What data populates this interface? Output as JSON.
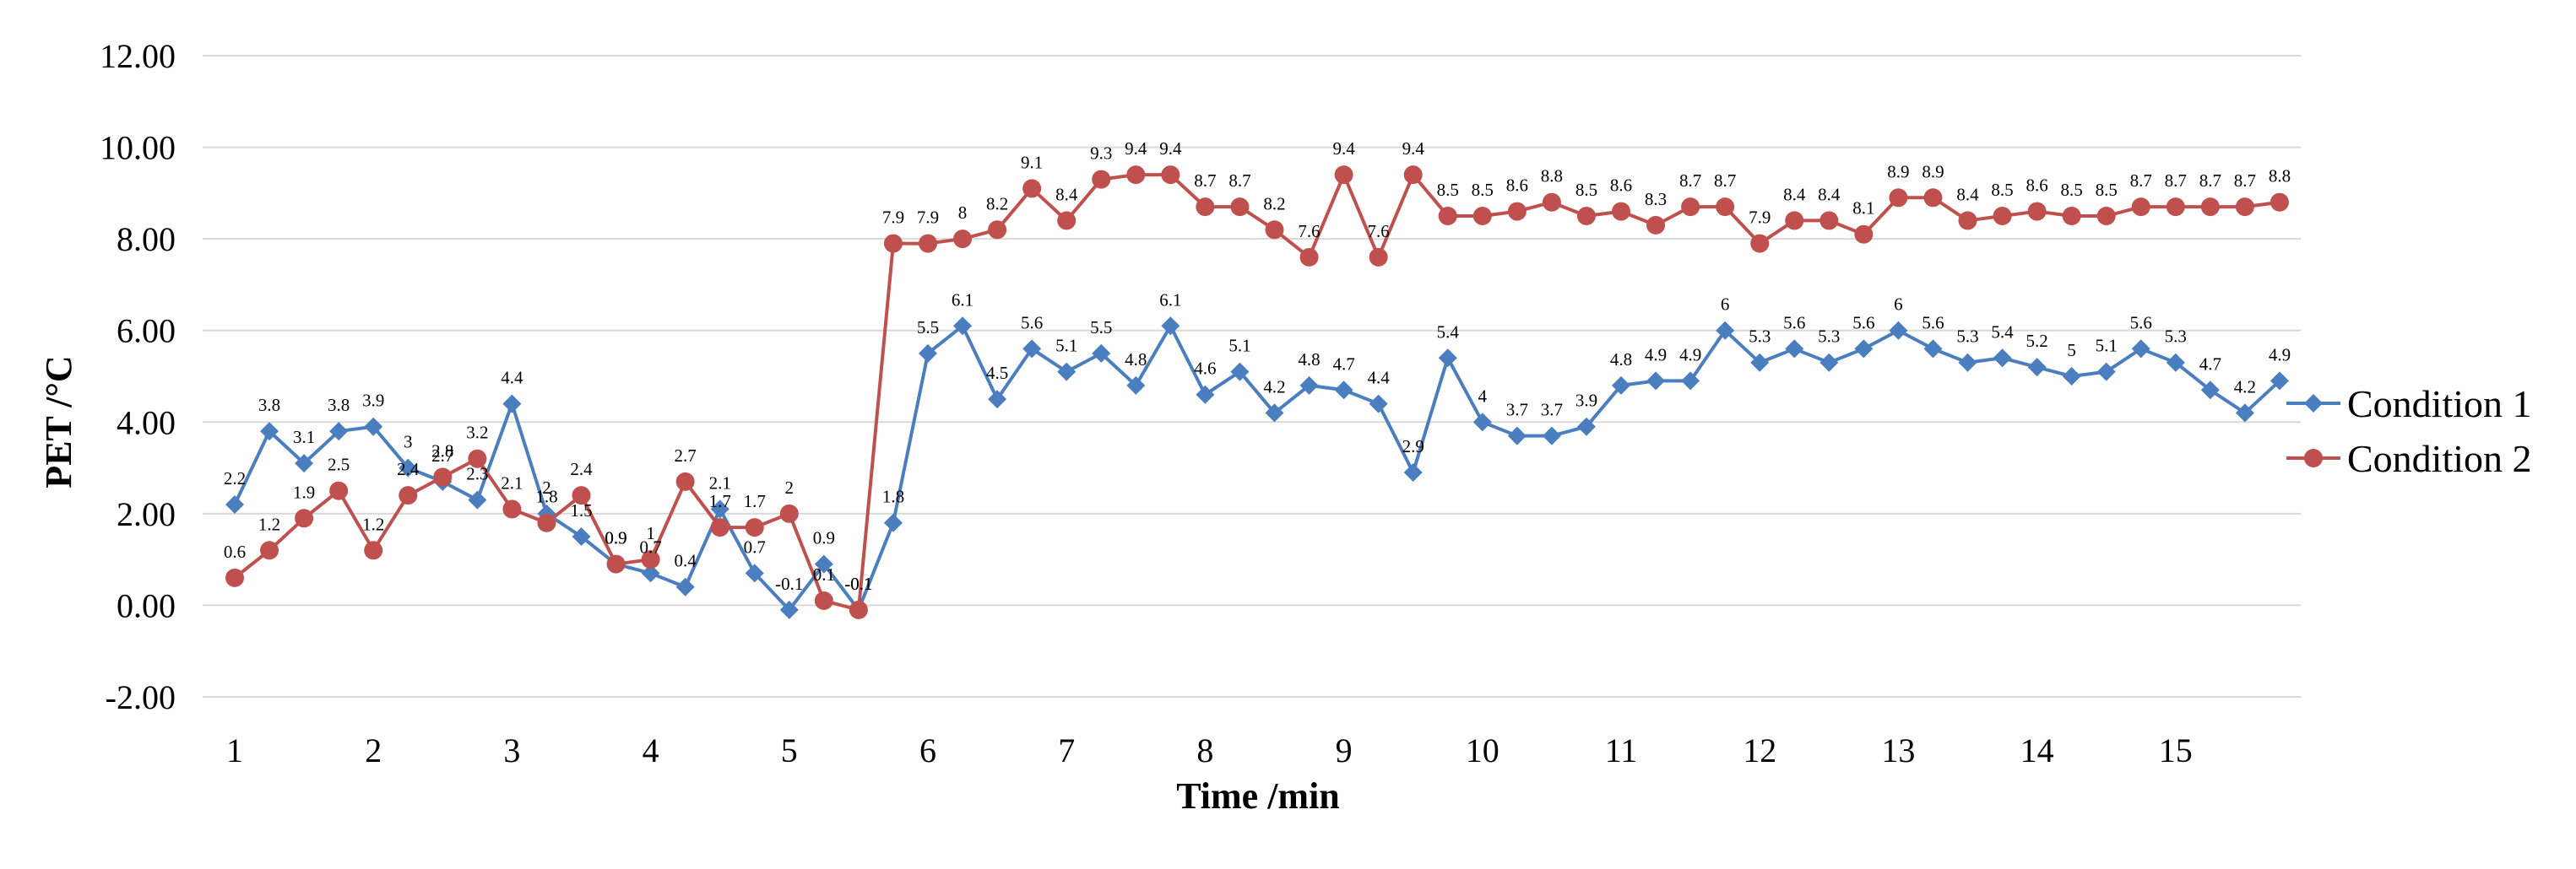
{
  "chart_data": {
    "type": "line",
    "title": "",
    "xlabel": "Time /min",
    "ylabel": "PET /°C",
    "ylim": [
      -2,
      12
    ],
    "yticks": [
      "-2.00",
      "0.00",
      "2.00",
      "4.00",
      "6.00",
      "8.00",
      "10.00",
      "12.00"
    ],
    "xticks": [
      "1",
      "2",
      "3",
      "4",
      "5",
      "6",
      "7",
      "8",
      "9",
      "10",
      "11",
      "12",
      "13",
      "14",
      "15"
    ],
    "points_per_minute": 4,
    "grid": "horizontal",
    "legend_position": "right",
    "series": [
      {
        "name": "Condition 1",
        "color": "#4a7ebf",
        "marker": "diamond",
        "values": [
          2.2,
          3.8,
          3.1,
          3.8,
          3.9,
          3,
          2.7,
          2.3,
          4.4,
          2,
          1.5,
          0.9,
          0.7,
          0.4,
          2.1,
          0.7,
          -0.1,
          0.9,
          -0.1,
          1.8,
          5.5,
          6.1,
          4.5,
          5.6,
          5.1,
          5.5,
          4.8,
          6.1,
          4.6,
          5.1,
          4.2,
          4.8,
          4.7,
          4.4,
          2.9,
          5.4,
          4,
          3.7,
          3.7,
          3.9,
          4.8,
          4.9,
          4.9,
          6,
          5.3,
          5.6,
          5.3,
          5.6,
          6,
          5.6,
          5.3,
          5.4,
          5.2,
          5,
          5.1,
          5.6,
          5.3,
          4.7,
          4.2,
          4.9
        ]
      },
      {
        "name": "Condition 2",
        "color": "#c0504d",
        "marker": "circle",
        "values": [
          0.6,
          1.2,
          1.9,
          2.5,
          1.2,
          2.4,
          2.8,
          3.2,
          2.1,
          1.8,
          2.4,
          0.9,
          1,
          2.7,
          1.7,
          1.7,
          2,
          0.1,
          -0.1,
          7.9,
          7.9,
          8,
          8.2,
          9.1,
          8.4,
          9.3,
          9.4,
          9.4,
          8.7,
          8.7,
          8.2,
          7.6,
          9.4,
          7.6,
          9.4,
          8.5,
          8.5,
          8.6,
          8.8,
          8.5,
          8.6,
          8.3,
          8.7,
          8.7,
          7.9,
          8.4,
          8.4,
          8.1,
          8.9,
          8.9,
          8.4,
          8.5,
          8.6,
          8.5,
          8.5,
          8.7,
          8.7,
          8.7,
          8.7,
          8.8
        ]
      }
    ]
  }
}
